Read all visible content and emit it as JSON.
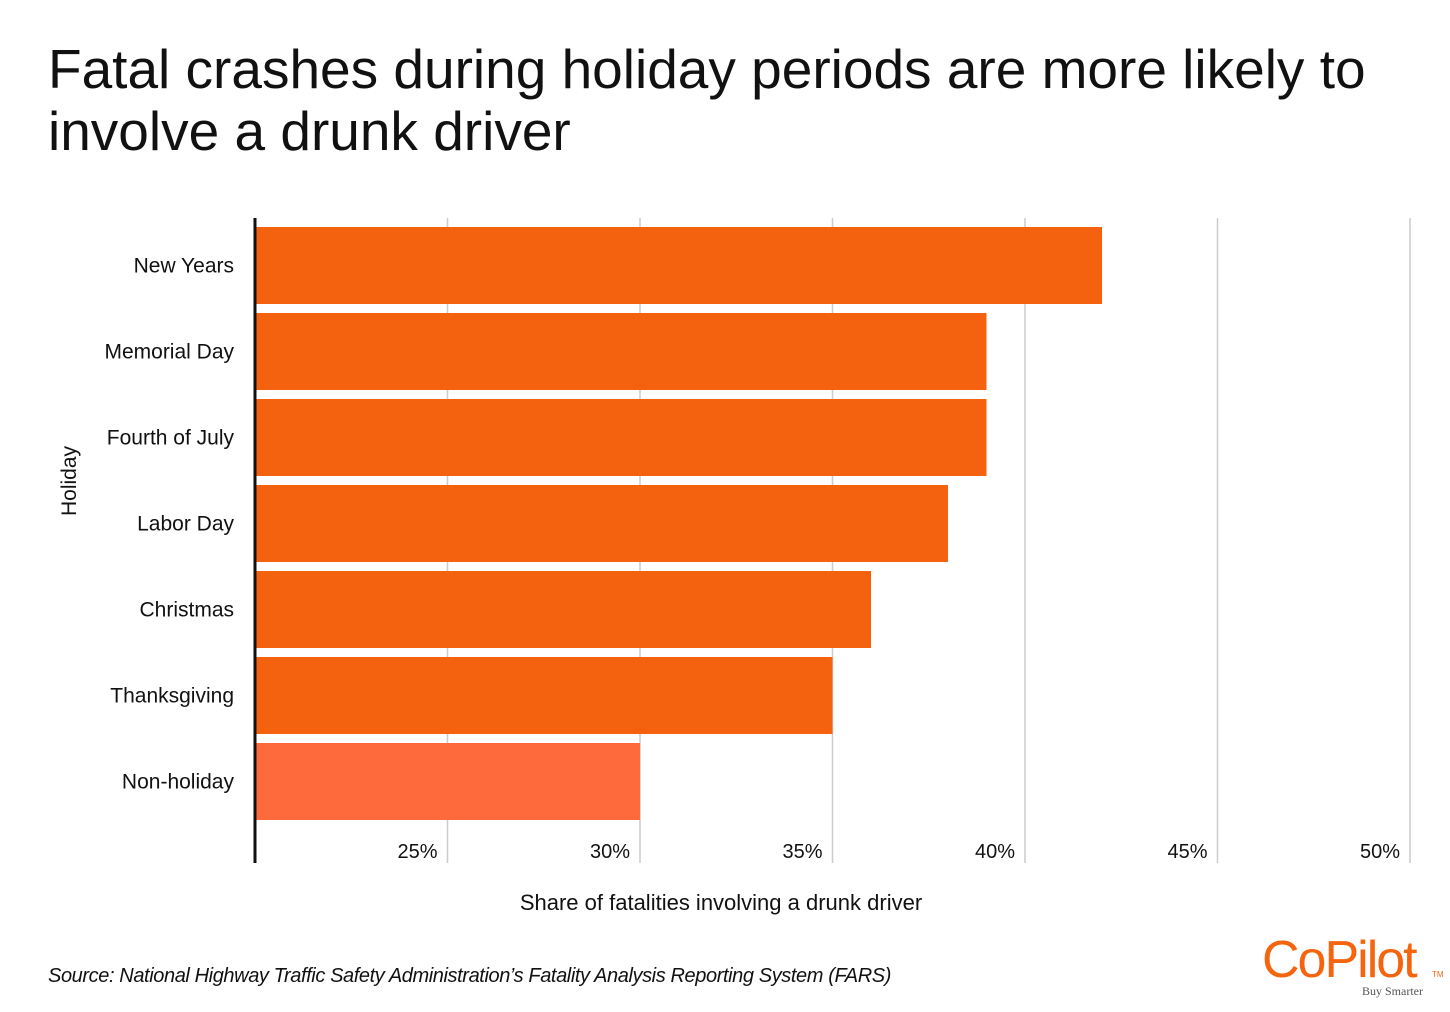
{
  "title": "Fatal crashes during holiday periods are more likely to involve a drunk driver",
  "source": "Source: National Highway Traffic Safety Administration’s Fatality Analysis Reporting System (FARS)",
  "logo": {
    "word": "CoPilot",
    "tm": "TM",
    "tagline": "Buy Smarter"
  },
  "colors": {
    "bar": "#f5620f",
    "highlight_bar": "#ff6a3d",
    "grid": "#cccccc",
    "axis": "#111111"
  },
  "chart_data": {
    "type": "bar",
    "orientation": "horizontal",
    "xlabel": "Share of fatalities involving a drunk driver",
    "ylabel": "Holiday",
    "categories": [
      "New Years",
      "Memorial Day",
      "Fourth of July",
      "Labor Day",
      "Christmas",
      "Thanksgiving",
      "Non-holiday"
    ],
    "values": [
      42.0,
      39.0,
      39.0,
      38.0,
      36.0,
      35.0,
      30.0
    ],
    "xlim": [
      20,
      50
    ],
    "xticks": [
      25,
      30,
      35,
      40,
      45,
      50
    ],
    "xtick_labels": [
      "25%",
      "30%",
      "35%",
      "40%",
      "45%",
      "50%"
    ],
    "highlight": "Non-holiday",
    "grid": "vertical",
    "legend": "none"
  }
}
